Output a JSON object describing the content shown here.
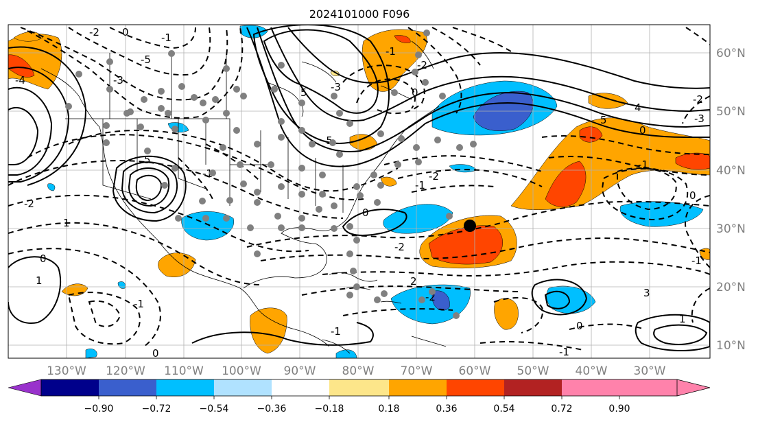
{
  "title": "2024101000 F096",
  "lon_ticks": [
    "130°W",
    "120°W",
    "110°W",
    "100°W",
    "90°W",
    "80°W",
    "70°W",
    "60°W",
    "50°W",
    "40°W",
    "30°W"
  ],
  "lat_ticks": [
    "60°N",
    "50°N",
    "40°N",
    "30°N",
    "20°N",
    "10°N"
  ],
  "colorbar": {
    "ticks": [
      "−0.90",
      "−0.72",
      "−0.54",
      "−0.36",
      "−0.18",
      "0.18",
      "0.36",
      "0.54",
      "0.72",
      "0.90"
    ],
    "colors": [
      "#9932cc",
      "#00008b",
      "#3a5fcd",
      "#00bfff",
      "#b0e2ff",
      "#ffffff",
      "#fde68a",
      "#ffa500",
      "#ff4500",
      "#b22222",
      "#ff82ab"
    ]
  },
  "contour_labels": [
    "0",
    "-5",
    "-4",
    "-3",
    "-2",
    "-1",
    "5",
    "-5",
    "-3",
    "0",
    "-2",
    "-1",
    "5",
    "-1",
    "-2",
    "1",
    "-2",
    "0",
    "-1",
    "-1",
    "-2",
    "2",
    "0",
    "1",
    "-2",
    "3",
    "-1",
    "0",
    "0",
    "-1",
    "1",
    "-1",
    "0",
    "-1",
    "0",
    "4",
    "5",
    "-2",
    "-3"
  ],
  "stations_marker": "gray-dot",
  "center_marker": "black-dot"
}
